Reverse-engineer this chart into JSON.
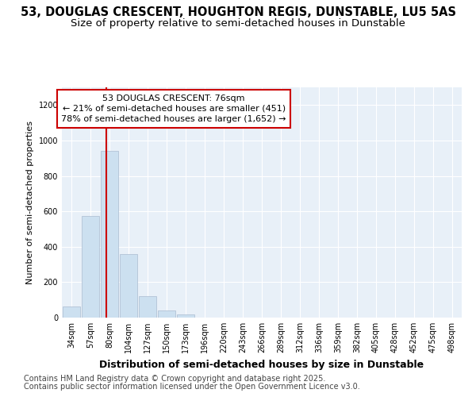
{
  "title": "53, DOUGLAS CRESCENT, HOUGHTON REGIS, DUNSTABLE, LU5 5AS",
  "subtitle": "Size of property relative to semi-detached houses in Dunstable",
  "xlabel": "Distribution of semi-detached houses by size in Dunstable",
  "ylabel": "Number of semi-detached properties",
  "categories": [
    "34sqm",
    "57sqm",
    "80sqm",
    "104sqm",
    "127sqm",
    "150sqm",
    "173sqm",
    "196sqm",
    "220sqm",
    "243sqm",
    "266sqm",
    "289sqm",
    "312sqm",
    "336sqm",
    "359sqm",
    "382sqm",
    "405sqm",
    "428sqm",
    "452sqm",
    "475sqm",
    "498sqm"
  ],
  "values": [
    65,
    575,
    940,
    360,
    120,
    42,
    17,
    0,
    0,
    0,
    0,
    0,
    0,
    0,
    0,
    0,
    0,
    0,
    0,
    0,
    0
  ],
  "bar_color": "#cce0f0",
  "bar_edge_color": "#aabbd0",
  "property_line_x": 1.83,
  "annotation_text": "53 DOUGLAS CRESCENT: 76sqm\n← 21% of semi-detached houses are smaller (451)\n78% of semi-detached houses are larger (1,652) →",
  "annotation_box_facecolor": "#ffffff",
  "annotation_box_edgecolor": "#cc0000",
  "vline_color": "#cc0000",
  "ylim": [
    0,
    1300
  ],
  "yticks": [
    0,
    200,
    400,
    600,
    800,
    1000,
    1200
  ],
  "bg_color": "#ffffff",
  "plot_bg_color": "#e8f0f8",
  "footer1": "Contains HM Land Registry data © Crown copyright and database right 2025.",
  "footer2": "Contains public sector information licensed under the Open Government Licence v3.0.",
  "title_fontsize": 10.5,
  "subtitle_fontsize": 9.5,
  "footer_fontsize": 7,
  "xlabel_fontsize": 9,
  "ylabel_fontsize": 8,
  "tick_fontsize": 7,
  "annot_fontsize": 8
}
